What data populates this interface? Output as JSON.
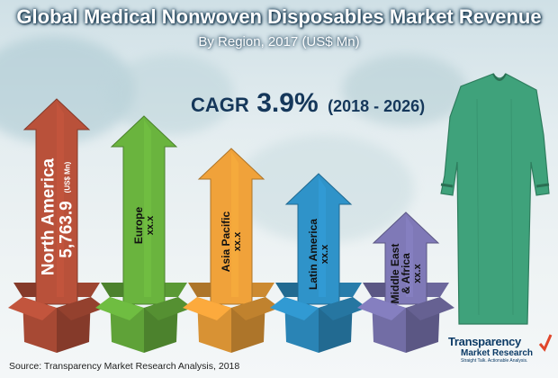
{
  "colors": {
    "north_america": "#b9513a",
    "europe": "#6ab43e",
    "asia_pacific": "#f0a23a",
    "latin_america": "#2f93c9",
    "middle_east_africa": "#7f79b7",
    "title_text": "#ffffff",
    "cagr_text": "#15375a",
    "gown": "#3fa27b"
  },
  "chart_data": {
    "type": "bar",
    "title": "Global Medical Nonwoven Disposables Market Revenue",
    "subtitle": "By Region, 2017 (US$ Mn)",
    "xlabel": "",
    "ylabel": "",
    "categories": [
      "North America",
      "Europe",
      "Asia Pacific",
      "Latin America",
      "Middle East & Africa"
    ],
    "values": [
      5763.9,
      null,
      null,
      null,
      null
    ],
    "value_labels": [
      "5,763.9",
      "xx.x",
      "xx.x",
      "xx.x",
      "xx.x"
    ],
    "unit_label": "(US$ Mn)",
    "annotation": {
      "label": "CAGR",
      "value": "3.9%",
      "period": "(2018 - 2026)"
    },
    "source": "Source: Transparency Market Research Analysis, 2018"
  },
  "logo": {
    "line1": "Transparency",
    "line2": "Market Research",
    "tagline": "Straight Talk. Actionable Analysis."
  }
}
